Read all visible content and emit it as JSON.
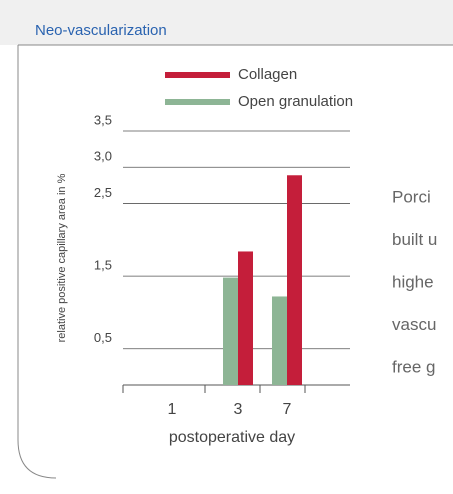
{
  "header": {
    "title": "Neo-vascularization"
  },
  "chart_data": {
    "type": "bar",
    "categories": [
      "1",
      "3",
      "7"
    ],
    "series": [
      {
        "name": "Collagen",
        "color": "#c41e3a",
        "values": [
          null,
          1.84,
          2.89
        ]
      },
      {
        "name": "Open granulation",
        "color": "#8db595",
        "values": [
          null,
          1.48,
          1.22
        ]
      }
    ],
    "ylim": [
      0,
      3.5
    ],
    "yticks": [
      {
        "value": 3.5,
        "label": "3,5"
      },
      {
        "value": 3.0,
        "label": "3,0"
      },
      {
        "value": 2.5,
        "label": "2,5"
      },
      {
        "value": 1.5,
        "label": "1,5"
      },
      {
        "value": 0.5,
        "label": "0,5"
      }
    ],
    "grid": true,
    "x_label": "postoperative day",
    "y_label": "relative positive capillary area in %"
  },
  "text_lines": [
    "Porci",
    "built u",
    "highe",
    "vascu",
    "free g"
  ]
}
